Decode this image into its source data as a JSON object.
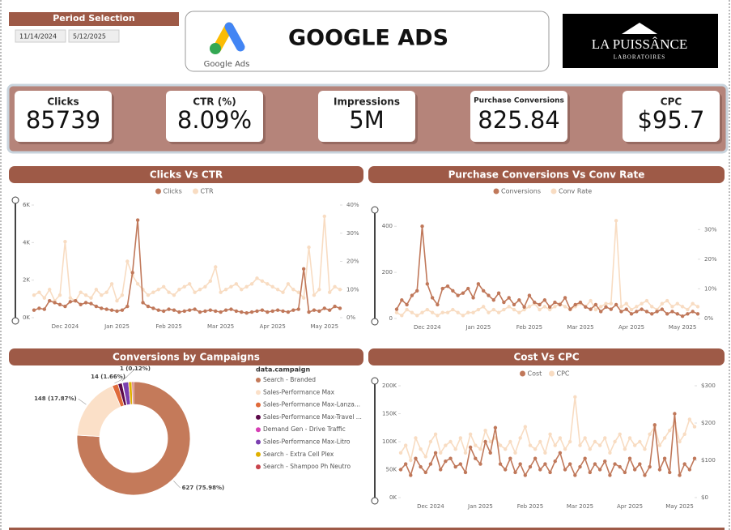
{
  "header": {
    "period_label": "Period Selection",
    "start_date": "11/14/2024",
    "end_date": "5/12/2025",
    "title": "GOOGLE ADS",
    "logo_caption": "Google Ads",
    "brand": "LA PUISSÂNCE",
    "brand_sub": "LABORATOIRES"
  },
  "kpis": [
    {
      "label": "Clicks",
      "value": "85739"
    },
    {
      "label": "CTR (%)",
      "value": "8.09%"
    },
    {
      "label": "Impressions",
      "value": "5M"
    },
    {
      "label": "Purchase Conversions",
      "value": "825.84"
    },
    {
      "label": "CPC",
      "value": "$95.7"
    }
  ],
  "chart_data": [
    {
      "type": "line",
      "title": "Clicks Vs CTR",
      "categories": [
        null,
        null,
        null,
        null,
        null,
        null,
        "Dec 2024",
        null,
        null,
        null,
        null,
        null,
        null,
        null,
        null,
        null,
        "Jan 2025",
        null,
        null,
        null,
        null,
        null,
        null,
        null,
        null,
        null,
        "Feb 2025",
        null,
        null,
        null,
        null,
        null,
        null,
        null,
        null,
        null,
        "Mar 2025",
        null,
        null,
        null,
        null,
        null,
        null,
        null,
        null,
        null,
        "Apr 2025",
        null,
        null,
        null,
        null,
        null,
        null,
        null,
        null,
        null,
        "May 2025",
        null,
        null,
        null
      ],
      "series": [
        {
          "name": "Clicks",
          "color": "#c0785a",
          "values": [
            400,
            500,
            450,
            900,
            800,
            700,
            600,
            850,
            900,
            700,
            800,
            750,
            600,
            500,
            450,
            400,
            350,
            400,
            600,
            2400,
            5200,
            800,
            600,
            500,
            400,
            350,
            450,
            400,
            300,
            350,
            400,
            450,
            300,
            350,
            400,
            350,
            300,
            400,
            450,
            350,
            300,
            250,
            300,
            350,
            400,
            300,
            350,
            400,
            350,
            300,
            400,
            450,
            2600,
            300,
            400,
            350,
            500,
            400,
            600,
            500
          ]
        },
        {
          "name": "CTR",
          "color": "#f8dcc2",
          "axis": "y2",
          "values": [
            8,
            9,
            7,
            10,
            6,
            8,
            27,
            7,
            6,
            9,
            8,
            7,
            10,
            8,
            9,
            12,
            6,
            8,
            20,
            15,
            12,
            10,
            8,
            9,
            10,
            11,
            9,
            8,
            10,
            11,
            12,
            9,
            10,
            11,
            13,
            18,
            9,
            10,
            11,
            12,
            10,
            11,
            12,
            14,
            13,
            12,
            11,
            10,
            9,
            12,
            10,
            9,
            7,
            25,
            8,
            10,
            36,
            9,
            11,
            10
          ]
        }
      ],
      "ylim": [
        0,
        6000
      ],
      "yticks": [
        {
          "value": 0,
          "label": "0K"
        },
        {
          "value": 2000,
          "label": "2K"
        },
        {
          "value": 4000,
          "label": "4K"
        },
        {
          "value": 6000,
          "label": "6K"
        }
      ],
      "y2lim": [
        0,
        40
      ],
      "y2ticks": [
        {
          "value": 0,
          "label": "0%"
        },
        {
          "value": 10,
          "label": "10%"
        },
        {
          "value": 20,
          "label": "20%"
        },
        {
          "value": 30,
          "label": "30%"
        },
        {
          "value": 40,
          "label": "40%"
        }
      ]
    },
    {
      "type": "line",
      "title": "Purchase Conversions Vs Conv Rate",
      "categories": [
        null,
        null,
        null,
        null,
        null,
        null,
        "Dec 2024",
        null,
        null,
        null,
        null,
        null,
        null,
        null,
        null,
        null,
        "Jan 2025",
        null,
        null,
        null,
        null,
        null,
        null,
        null,
        null,
        null,
        "Feb 2025",
        null,
        null,
        null,
        null,
        null,
        null,
        null,
        null,
        null,
        "Mar 2025",
        null,
        null,
        null,
        null,
        null,
        null,
        null,
        null,
        null,
        "Apr 2025",
        null,
        null,
        null,
        null,
        null,
        null,
        null,
        null,
        null,
        "May 2025",
        null,
        null,
        null
      ],
      "series": [
        {
          "name": "Conversions",
          "color": "#c0785a",
          "values": [
            40,
            80,
            60,
            100,
            120,
            400,
            150,
            90,
            60,
            130,
            140,
            120,
            100,
            110,
            130,
            90,
            150,
            120,
            100,
            80,
            110,
            70,
            90,
            60,
            80,
            50,
            100,
            70,
            60,
            80,
            50,
            70,
            60,
            90,
            40,
            60,
            70,
            50,
            40,
            60,
            30,
            50,
            40,
            60,
            30,
            40,
            20,
            30,
            40,
            30,
            20,
            30,
            40,
            20,
            30,
            20,
            10,
            20,
            30,
            20
          ]
        },
        {
          "name": "Conv Rate",
          "color": "#f8dcc2",
          "axis": "y2",
          "values": [
            2,
            1,
            3,
            2,
            1,
            2,
            3,
            2,
            1,
            2,
            2,
            3,
            2,
            1,
            2,
            2,
            3,
            4,
            2,
            3,
            2,
            3,
            4,
            3,
            2,
            3,
            4,
            5,
            3,
            4,
            3,
            4,
            5,
            4,
            3,
            4,
            5,
            4,
            6,
            3,
            4,
            5,
            5,
            33,
            4,
            5,
            3,
            4,
            5,
            6,
            4,
            3,
            5,
            6,
            4,
            5,
            4,
            3,
            5,
            4
          ]
        }
      ],
      "ylim": [
        0,
        450
      ],
      "yticks": [
        0,
        200,
        400
      ],
      "y2lim": [
        0,
        35
      ],
      "y2ticks": [
        {
          "value": 0,
          "label": "0%"
        },
        {
          "value": 10,
          "label": "10%"
        },
        {
          "value": 20,
          "label": "20%"
        },
        {
          "value": 30,
          "label": "30%"
        }
      ]
    },
    {
      "type": "pie",
      "title": "Conversions by Campaigns",
      "legend_title": "data.campaign",
      "categories": [
        "Search - Branded",
        "Sales-Performance Max",
        "Sales-Performance Max-Lanza...",
        "Sales-Performance Max-Travel ...",
        "Demand Gen - Drive Traffic",
        "Sales-Performance Max-Litro",
        "Search - Extra Cell Plex",
        "Search - Shampoo Ph Neutro"
      ],
      "values": [
        627,
        148,
        14,
        10,
        1,
        14,
        8,
        3.84
      ],
      "value_labels": [
        "627 (75.98%)",
        "148 (17.87%)",
        "14 (1.66%)",
        null,
        "1 (0.12%)",
        null,
        null,
        null
      ],
      "colors": [
        "#c47a5a",
        "#fbe0c8",
        "#e06a3a",
        "#5c0a4a",
        "#d63fb5",
        "#7b3fb0",
        "#e0b000",
        "#c8444c"
      ]
    },
    {
      "type": "line",
      "title": "Cost Vs CPC",
      "categories": [
        null,
        null,
        null,
        null,
        null,
        null,
        "Dec 2024",
        null,
        null,
        null,
        null,
        null,
        null,
        null,
        null,
        null,
        "Jan 2025",
        null,
        null,
        null,
        null,
        null,
        null,
        null,
        null,
        null,
        "Feb 2025",
        null,
        null,
        null,
        null,
        null,
        null,
        null,
        null,
        null,
        "Mar 2025",
        null,
        null,
        null,
        null,
        null,
        null,
        null,
        null,
        null,
        "Apr 2025",
        null,
        null,
        null,
        null,
        null,
        null,
        null,
        null,
        null,
        "May 2025",
        null,
        null,
        null
      ],
      "series": [
        {
          "name": "Cost",
          "color": "#c0785a",
          "values": [
            50000,
            60000,
            40000,
            70000,
            55000,
            45000,
            60000,
            80000,
            50000,
            65000,
            70000,
            55000,
            60000,
            45000,
            90000,
            70000,
            60000,
            100000,
            80000,
            125000,
            60000,
            50000,
            70000,
            45000,
            60000,
            40000,
            55000,
            70000,
            50000,
            60000,
            45000,
            65000,
            80000,
            50000,
            60000,
            40000,
            55000,
            70000,
            45000,
            60000,
            50000,
            65000,
            40000,
            60000,
            55000,
            45000,
            70000,
            50000,
            60000,
            40000,
            55000,
            130000,
            50000,
            70000,
            45000,
            150000,
            40000,
            60000,
            50000,
            70000
          ]
        },
        {
          "name": "CPC",
          "color": "#f8dcc2",
          "axis": "y2",
          "values": [
            120,
            140,
            100,
            160,
            130,
            110,
            150,
            170,
            120,
            140,
            150,
            130,
            160,
            120,
            170,
            140,
            130,
            180,
            150,
            160,
            140,
            130,
            150,
            120,
            160,
            190,
            140,
            130,
            150,
            120,
            170,
            140,
            160,
            130,
            150,
            270,
            140,
            160,
            130,
            150,
            140,
            160,
            120,
            150,
            170,
            130,
            160,
            140,
            150,
            130,
            170,
            190,
            140,
            160,
            180,
            200,
            150,
            170,
            210,
            190
          ]
        }
      ],
      "ylim": [
        0,
        200000
      ],
      "yticks": [
        {
          "value": 0,
          "label": "0K"
        },
        {
          "value": 50000,
          "label": "50K"
        },
        {
          "value": 100000,
          "label": "100K"
        },
        {
          "value": 150000,
          "label": "150K"
        },
        {
          "value": 200000,
          "label": "200K"
        }
      ],
      "y2lim": [
        0,
        300
      ],
      "y2ticks": [
        {
          "value": 0,
          "label": "$0"
        },
        {
          "value": 100,
          "label": "$100"
        },
        {
          "value": 200,
          "label": "$200"
        },
        {
          "value": 300,
          "label": "$300"
        }
      ]
    }
  ]
}
